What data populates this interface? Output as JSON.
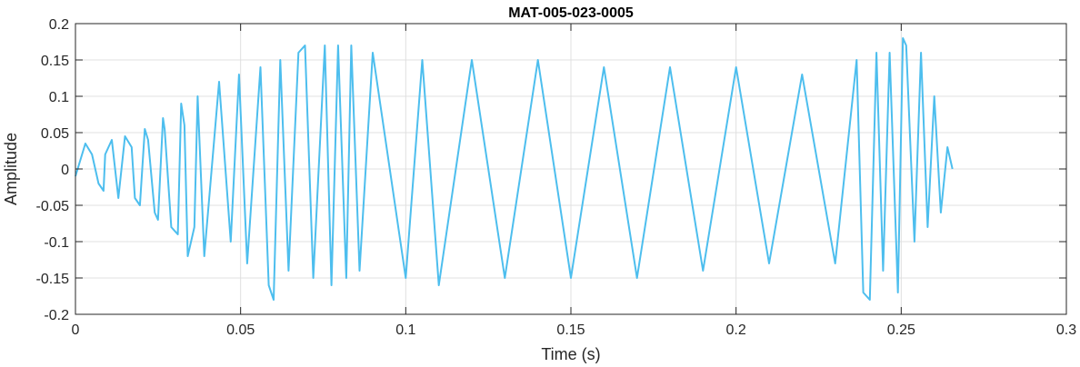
{
  "chart_data": {
    "type": "line",
    "title": "MAT-005-023-0005",
    "xlabel": "Time (s)",
    "ylabel": "Amplitude",
    "xlim": [
      0,
      0.3
    ],
    "ylim": [
      -0.2,
      0.2
    ],
    "xticks": [
      0,
      0.05,
      0.1,
      0.15,
      0.2,
      0.25,
      0.3
    ],
    "xtick_labels": [
      "0",
      "0.05",
      "0.1",
      "0.15",
      "0.2",
      "0.25",
      "0.3"
    ],
    "yticks": [
      -0.2,
      -0.15,
      -0.1,
      -0.05,
      0,
      0.05,
      0.1,
      0.15,
      0.2
    ],
    "ytick_labels": [
      "-0.2",
      "-0.15",
      "-0.1",
      "-0.05",
      "0",
      "0.05",
      "0.1",
      "0.15",
      "0.2"
    ],
    "grid": true,
    "series": [
      {
        "color": "#4DBEEE",
        "x": [
          0,
          0.003,
          0.005,
          0.007,
          0.0085,
          0.009,
          0.011,
          0.0125,
          0.013,
          0.015,
          0.017,
          0.018,
          0.0195,
          0.021,
          0.022,
          0.024,
          0.025,
          0.0265,
          0.027,
          0.029,
          0.031,
          0.032,
          0.033,
          0.034,
          0.036,
          0.037,
          0.039,
          0.0435,
          0.047,
          0.0495,
          0.052,
          0.056,
          0.0585,
          0.06,
          0.062,
          0.0645,
          0.0675,
          0.0695,
          0.072,
          0.0755,
          0.0775,
          0.0795,
          0.082,
          0.0835,
          0.086,
          0.09,
          0.1,
          0.105,
          0.11,
          0.12,
          0.13,
          0.14,
          0.15,
          0.16,
          0.17,
          0.18,
          0.19,
          0.2,
          0.21,
          0.22,
          0.23,
          0.2365,
          0.2385,
          0.2405,
          0.2425,
          0.2445,
          0.2465,
          0.249,
          0.2505,
          0.2515,
          0.254,
          0.256,
          0.258,
          0.26,
          0.262,
          0.264,
          0.2655
        ],
        "y": [
          -0.01,
          0.035,
          0.02,
          -0.02,
          -0.03,
          0.02,
          0.04,
          -0.02,
          -0.04,
          0.045,
          0.03,
          -0.04,
          -0.05,
          0.055,
          0.04,
          -0.06,
          -0.07,
          0.07,
          0.055,
          -0.08,
          -0.09,
          0.09,
          0.06,
          -0.12,
          -0.08,
          0.1,
          -0.12,
          0.12,
          -0.1,
          0.13,
          -0.13,
          0.14,
          -0.16,
          -0.18,
          0.15,
          -0.14,
          0.16,
          0.17,
          -0.15,
          0.17,
          -0.16,
          0.17,
          -0.15,
          0.17,
          -0.14,
          0.16,
          -0.15,
          0.15,
          -0.16,
          0.15,
          -0.15,
          0.15,
          -0.15,
          0.14,
          -0.15,
          0.14,
          -0.14,
          0.14,
          -0.13,
          0.13,
          -0.13,
          0.15,
          -0.17,
          -0.18,
          0.16,
          -0.14,
          0.16,
          -0.17,
          0.18,
          0.17,
          -0.1,
          0.16,
          -0.08,
          0.1,
          -0.06,
          0.03,
          0.0
        ]
      }
    ]
  }
}
